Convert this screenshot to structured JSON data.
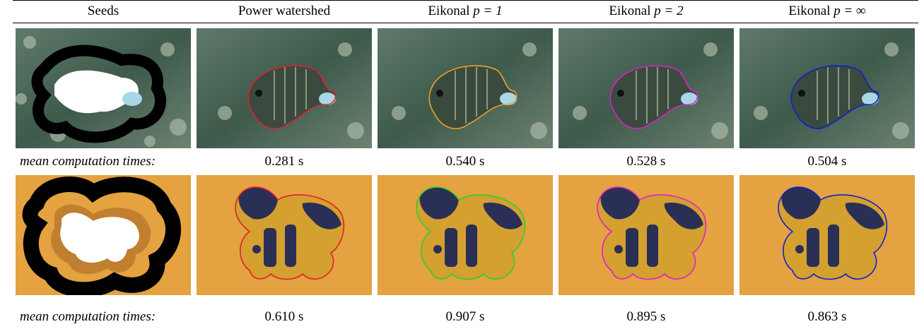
{
  "header": {
    "col_seeds": "Seeds",
    "col_power": "Power watershed",
    "col_p1_prefix": "Eikonal ",
    "col_p1_math": "p = 1",
    "col_p2_prefix": "Eikonal ",
    "col_p2_math": "p = 2",
    "col_pinf_prefix": "Eikonal ",
    "col_pinf_math": "p = ∞"
  },
  "rows": [
    {
      "caption": "mean computation times:",
      "times": [
        "0.281 s",
        "0.540 s",
        "0.528 s",
        "0.504 s"
      ]
    },
    {
      "caption": "mean computation times:",
      "times": [
        "0.610 s",
        "0.907 s",
        "0.895 s",
        "0.863 s"
      ]
    }
  ],
  "colors": {
    "power_watershed": "#e0202a",
    "eikonal_p1_row1": "#f0a020",
    "eikonal_p1_row2": "#28d030",
    "eikonal_p2": "#e020c8",
    "eikonal_pinf": "#1020d0"
  }
}
